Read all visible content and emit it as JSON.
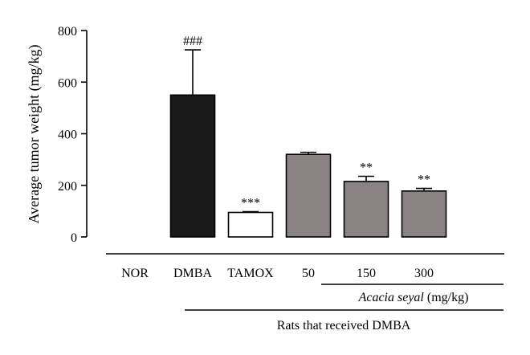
{
  "chart_data": {
    "type": "bar",
    "ylabel": "Average tumor weight (mg/kg)",
    "ylim": [
      0,
      800
    ],
    "yticks": [
      "0",
      "200",
      "400",
      "600",
      "800"
    ],
    "categories": [
      "NOR",
      "DMBA",
      "TAMOX",
      "50",
      "150",
      "300"
    ],
    "values": [
      0,
      550,
      95,
      320,
      215,
      178
    ],
    "errors": [
      0,
      175,
      3,
      8,
      20,
      10
    ],
    "significance": [
      "",
      "###",
      "***",
      "",
      "**",
      "**"
    ],
    "bar_colors": [
      "#ffffff",
      "#1a1a1a",
      "#ffffff",
      "#8a8283",
      "#8a8283",
      "#8a8283"
    ],
    "group_label_italic": "Acacia seyal",
    "group_label_unit": " (mg/kg)",
    "outer_group_label": "Rats that received DMBA"
  }
}
